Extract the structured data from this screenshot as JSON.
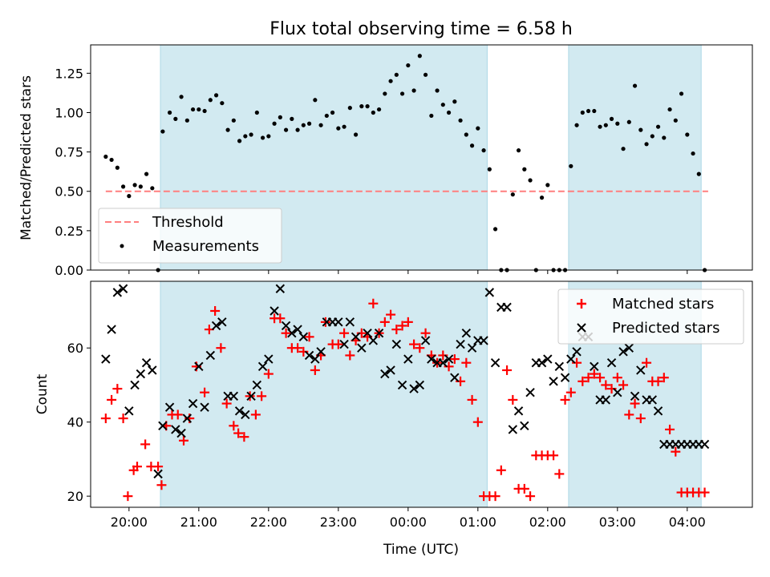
{
  "chart_data": [
    {
      "type": "scatter",
      "title": "Flux total observing time = 6.58 h",
      "xlabel": "",
      "ylabel": "Matched/Predicted stars",
      "ylim": [
        0,
        1.43
      ],
      "xlim": [
        "19:27",
        "04:56"
      ],
      "y_ticks": [
        "0.00",
        "0.25",
        "0.50",
        "0.75",
        "1.00",
        "1.25"
      ],
      "grid": false,
      "legend": "lower-left",
      "shaded_intervals": [
        [
          "20:27",
          "01:08"
        ],
        [
          "02:18",
          "04:12"
        ]
      ],
      "shade_color": "#add8e6",
      "series": [
        {
          "name": "Threshold",
          "style": "dashed-line",
          "color": "#ff7f7f",
          "x": [
            "19:40",
            "04:18"
          ],
          "y": [
            0.5,
            0.5
          ]
        },
        {
          "name": "Measurements",
          "style": "dot",
          "color": "#000000",
          "x": [
            "19:40",
            "19:45",
            "19:50",
            "19:55",
            "20:00",
            "20:05",
            "20:10",
            "20:15",
            "20:20",
            "20:25",
            "20:29",
            "20:35",
            "20:40",
            "20:45",
            "20:50",
            "20:55",
            "21:00",
            "21:05",
            "21:10",
            "21:15",
            "21:20",
            "21:25",
            "21:30",
            "21:35",
            "21:40",
            "21:45",
            "21:50",
            "21:55",
            "22:00",
            "22:05",
            "22:10",
            "22:15",
            "22:20",
            "22:25",
            "22:30",
            "22:35",
            "22:40",
            "22:45",
            "22:50",
            "22:55",
            "23:00",
            "23:05",
            "23:10",
            "23:15",
            "23:20",
            "23:25",
            "23:30",
            "23:35",
            "23:40",
            "23:45",
            "23:50",
            "23:55",
            "00:00",
            "00:05",
            "00:10",
            "00:15",
            "00:20",
            "00:25",
            "00:30",
            "00:35",
            "00:40",
            "00:45",
            "00:50",
            "00:55",
            "01:00",
            "01:05",
            "01:10",
            "01:15",
            "01:20",
            "01:25",
            "01:30",
            "01:35",
            "01:40",
            "01:45",
            "01:50",
            "01:55",
            "02:00",
            "02:05",
            "02:10",
            "02:15",
            "02:20",
            "02:25",
            "02:30",
            "02:35",
            "02:40",
            "02:45",
            "02:50",
            "02:55",
            "03:00",
            "03:05",
            "03:10",
            "03:15",
            "03:20",
            "03:25",
            "03:30",
            "03:35",
            "03:40",
            "03:45",
            "03:50",
            "03:55",
            "04:00",
            "04:05",
            "04:10",
            "04:15"
          ],
          "y": [
            0.72,
            0.7,
            0.65,
            0.53,
            0.47,
            0.54,
            0.53,
            0.61,
            0.52,
            0.0,
            0.88,
            1.0,
            0.96,
            1.1,
            0.95,
            1.02,
            1.02,
            1.01,
            1.08,
            1.11,
            1.06,
            0.89,
            0.95,
            0.82,
            0.85,
            0.86,
            1.0,
            0.84,
            0.85,
            0.93,
            0.97,
            0.89,
            0.96,
            0.89,
            0.92,
            0.93,
            1.08,
            0.92,
            0.98,
            1.0,
            0.9,
            0.91,
            1.03,
            0.86,
            1.04,
            1.04,
            1.0,
            1.02,
            1.12,
            1.2,
            1.24,
            1.12,
            1.3,
            1.14,
            1.36,
            1.24,
            0.98,
            1.14,
            1.05,
            1.0,
            1.07,
            0.95,
            0.86,
            0.79,
            0.9,
            0.76,
            0.64,
            0.26,
            0.0,
            0.0,
            0.48,
            0.76,
            0.64,
            0.57,
            0.0,
            0.46,
            0.54,
            0.0,
            0.0,
            0.0,
            0.66,
            0.92,
            1.0,
            1.01,
            1.01,
            0.91,
            0.92,
            0.96,
            0.93,
            0.77,
            0.94,
            1.17,
            0.89,
            0.8,
            0.85,
            0.91,
            0.84,
            1.02,
            0.95,
            1.12,
            0.86,
            0.74,
            0.61,
            0.0
          ]
        }
      ]
    },
    {
      "type": "scatter",
      "title": "",
      "xlabel": "Time (UTC)",
      "ylabel": "Count",
      "ylim": [
        17,
        78
      ],
      "xlim": [
        "19:27",
        "04:56"
      ],
      "y_ticks": [
        "20",
        "40",
        "60"
      ],
      "x_ticks": [
        "20:00",
        "21:00",
        "22:00",
        "23:00",
        "00:00",
        "01:00",
        "02:00",
        "03:00",
        "04:00"
      ],
      "grid": false,
      "legend": "upper-right",
      "shaded_intervals": [
        [
          "20:27",
          "01:08"
        ],
        [
          "02:18",
          "04:12"
        ]
      ],
      "shade_color": "#add8e6",
      "series": [
        {
          "name": "Matched stars",
          "marker": "+",
          "color": "#ff0000",
          "x": [
            "19:40",
            "19:45",
            "19:52",
            "19:58",
            "20:04",
            "20:09",
            "20:15",
            "20:20",
            "20:25",
            "20:29",
            "20:35",
            "20:40",
            "20:45",
            "20:50",
            "20:55",
            "21:00",
            "21:05",
            "21:10",
            "21:15",
            "21:20",
            "21:25",
            "21:30",
            "21:35",
            "21:40",
            "21:45",
            "21:50",
            "21:55",
            "22:00",
            "22:05",
            "22:10",
            "22:15",
            "22:20",
            "22:25",
            "22:30",
            "22:35",
            "22:40",
            "22:45",
            "22:50",
            "22:55",
            "23:00",
            "23:05",
            "23:10",
            "23:15",
            "23:20",
            "23:25",
            "23:30",
            "23:35",
            "23:40",
            "23:45",
            "23:50",
            "23:55",
            "00:00",
            "00:05",
            "00:10",
            "00:15",
            "00:20",
            "00:25",
            "00:30",
            "00:35",
            "00:40",
            "00:45",
            "00:50",
            "00:55",
            "01:00",
            "01:05",
            "01:10",
            "01:15",
            "01:20",
            "01:25",
            "01:30",
            "01:35",
            "01:40",
            "01:45",
            "01:50",
            "01:55",
            "02:00",
            "02:05",
            "02:10",
            "02:15",
            "02:20",
            "02:25",
            "02:30",
            "02:35",
            "02:40",
            "02:45",
            "02:50",
            "02:55",
            "03:00",
            "03:05",
            "03:10",
            "03:15",
            "03:20",
            "03:25",
            "03:30",
            "03:35",
            "03:40",
            "03:45",
            "03:50",
            "03:55",
            "04:00",
            "04:05",
            "04:10",
            "04:15",
            "04:20"
          ],
          "y": [
            41,
            46,
            49,
            41,
            20,
            27,
            28,
            34,
            28,
            28,
            23,
            39,
            42,
            42,
            35,
            41,
            55,
            48,
            65,
            70,
            60,
            45,
            39,
            37,
            36,
            47,
            42,
            47,
            53,
            68,
            68,
            64,
            60,
            60,
            59,
            63,
            54,
            58,
            67,
            61,
            61,
            64,
            58,
            62,
            64,
            63,
            72,
            64,
            67,
            69,
            65,
            66,
            67,
            61,
            60,
            64,
            58,
            56,
            58,
            55,
            57,
            51,
            56,
            46,
            40,
            20,
            20,
            20,
            27,
            54,
            46,
            22,
            22,
            20,
            31,
            31,
            31,
            31,
            26,
            46,
            48,
            56,
            51,
            52,
            53,
            52,
            50,
            49,
            52,
            50,
            42,
            45,
            41,
            56,
            51,
            51,
            52,
            38,
            32,
            21,
            21,
            21,
            21,
            21
          ],
          "x_fix": [
            "19:40",
            "19:45",
            "19:50",
            "19:55",
            "19:59",
            "20:04",
            "20:07",
            "20:14",
            "20:19",
            "20:25",
            "20:28",
            "20:32",
            "20:37",
            "20:42",
            "20:47",
            "20:52",
            "20:58",
            "21:05",
            "21:09",
            "21:14",
            "21:19",
            "21:24",
            "21:30",
            "21:34",
            "21:39",
            "21:44",
            "21:49",
            "21:54",
            "22:00",
            "22:05",
            "22:10",
            "22:15",
            "22:20",
            "22:25",
            "22:30",
            "22:35",
            "22:40",
            "22:45",
            "22:49",
            "22:55",
            "23:00",
            "23:05",
            "23:10",
            "23:15",
            "23:20",
            "23:25",
            "23:30",
            "23:35",
            "23:40",
            "23:45",
            "23:50",
            "23:55",
            "00:00",
            "00:05",
            "00:10",
            "00:15",
            "00:20",
            "00:25",
            "00:30",
            "00:35",
            "00:40",
            "00:45",
            "00:50",
            "00:55",
            "01:00",
            "01:05",
            "01:10",
            "01:15",
            "01:20",
            "01:25",
            "01:30",
            "01:35",
            "01:40",
            "01:45",
            "01:50",
            "01:55",
            "02:00",
            "02:05",
            "02:10",
            "02:15",
            "02:20",
            "02:25",
            "02:30",
            "02:35",
            "02:40",
            "02:45",
            "02:50",
            "02:55",
            "03:00",
            "03:05",
            "03:10",
            "03:15",
            "03:20",
            "03:25",
            "03:30",
            "03:35",
            "03:40",
            "03:45",
            "03:50",
            "03:55",
            "04:00",
            "04:05",
            "04:10",
            "04:15"
          ]
        },
        {
          "name": "Predicted stars",
          "marker": "x",
          "color": "#000000",
          "x": [
            "19:40",
            "19:45",
            "19:50",
            "19:55",
            "20:00",
            "20:05",
            "20:10",
            "20:15",
            "20:20",
            "20:25",
            "20:29",
            "20:35",
            "20:40",
            "20:45",
            "20:50",
            "20:55",
            "21:00",
            "21:05",
            "21:10",
            "21:15",
            "21:20",
            "21:25",
            "21:30",
            "21:35",
            "21:40",
            "21:45",
            "21:50",
            "21:55",
            "22:00",
            "22:05",
            "22:10",
            "22:15",
            "22:20",
            "22:25",
            "22:30",
            "22:35",
            "22:40",
            "22:45",
            "22:50",
            "22:55",
            "23:00",
            "23:05",
            "23:10",
            "23:15",
            "23:20",
            "23:25",
            "23:30",
            "23:35",
            "23:40",
            "23:45",
            "23:50",
            "23:55",
            "00:00",
            "00:05",
            "00:10",
            "00:15",
            "00:20",
            "00:25",
            "00:30",
            "00:35",
            "00:40",
            "00:45",
            "00:50",
            "00:55",
            "01:00",
            "01:05",
            "01:10",
            "01:15",
            "01:20",
            "01:25",
            "01:30",
            "01:35",
            "01:40",
            "01:45",
            "01:50",
            "01:55",
            "02:00",
            "02:05",
            "02:10",
            "02:15",
            "02:20",
            "02:25",
            "02:30",
            "02:35",
            "02:40",
            "02:45",
            "02:50",
            "02:55",
            "03:00",
            "03:05",
            "03:10",
            "03:15",
            "03:20",
            "03:25",
            "03:30",
            "03:35",
            "03:40",
            "03:45",
            "03:50",
            "03:55",
            "04:00",
            "04:05",
            "04:10",
            "04:15"
          ],
          "y": [
            57,
            65,
            75,
            76,
            43,
            50,
            53,
            56,
            54,
            26,
            39,
            44,
            38,
            37,
            41,
            45,
            55,
            44,
            58,
            66,
            67,
            47,
            47,
            43,
            42,
            47,
            50,
            55,
            57,
            70,
            76,
            66,
            64,
            65,
            63,
            58,
            57,
            59,
            67,
            67,
            67,
            61,
            67,
            63,
            60,
            64,
            62,
            64,
            53,
            54,
            61,
            50,
            57,
            49,
            50,
            62,
            57,
            56,
            56,
            57,
            52,
            61,
            64,
            60,
            62,
            62,
            75,
            56,
            71,
            71,
            38,
            43,
            39,
            48,
            56,
            56,
            57,
            51,
            55,
            52,
            57,
            59,
            63,
            63,
            55,
            46,
            46,
            56,
            48,
            59,
            60,
            47,
            54,
            46,
            46,
            43,
            34,
            34,
            34,
            34,
            34,
            34,
            34,
            34
          ]
        }
      ]
    }
  ]
}
